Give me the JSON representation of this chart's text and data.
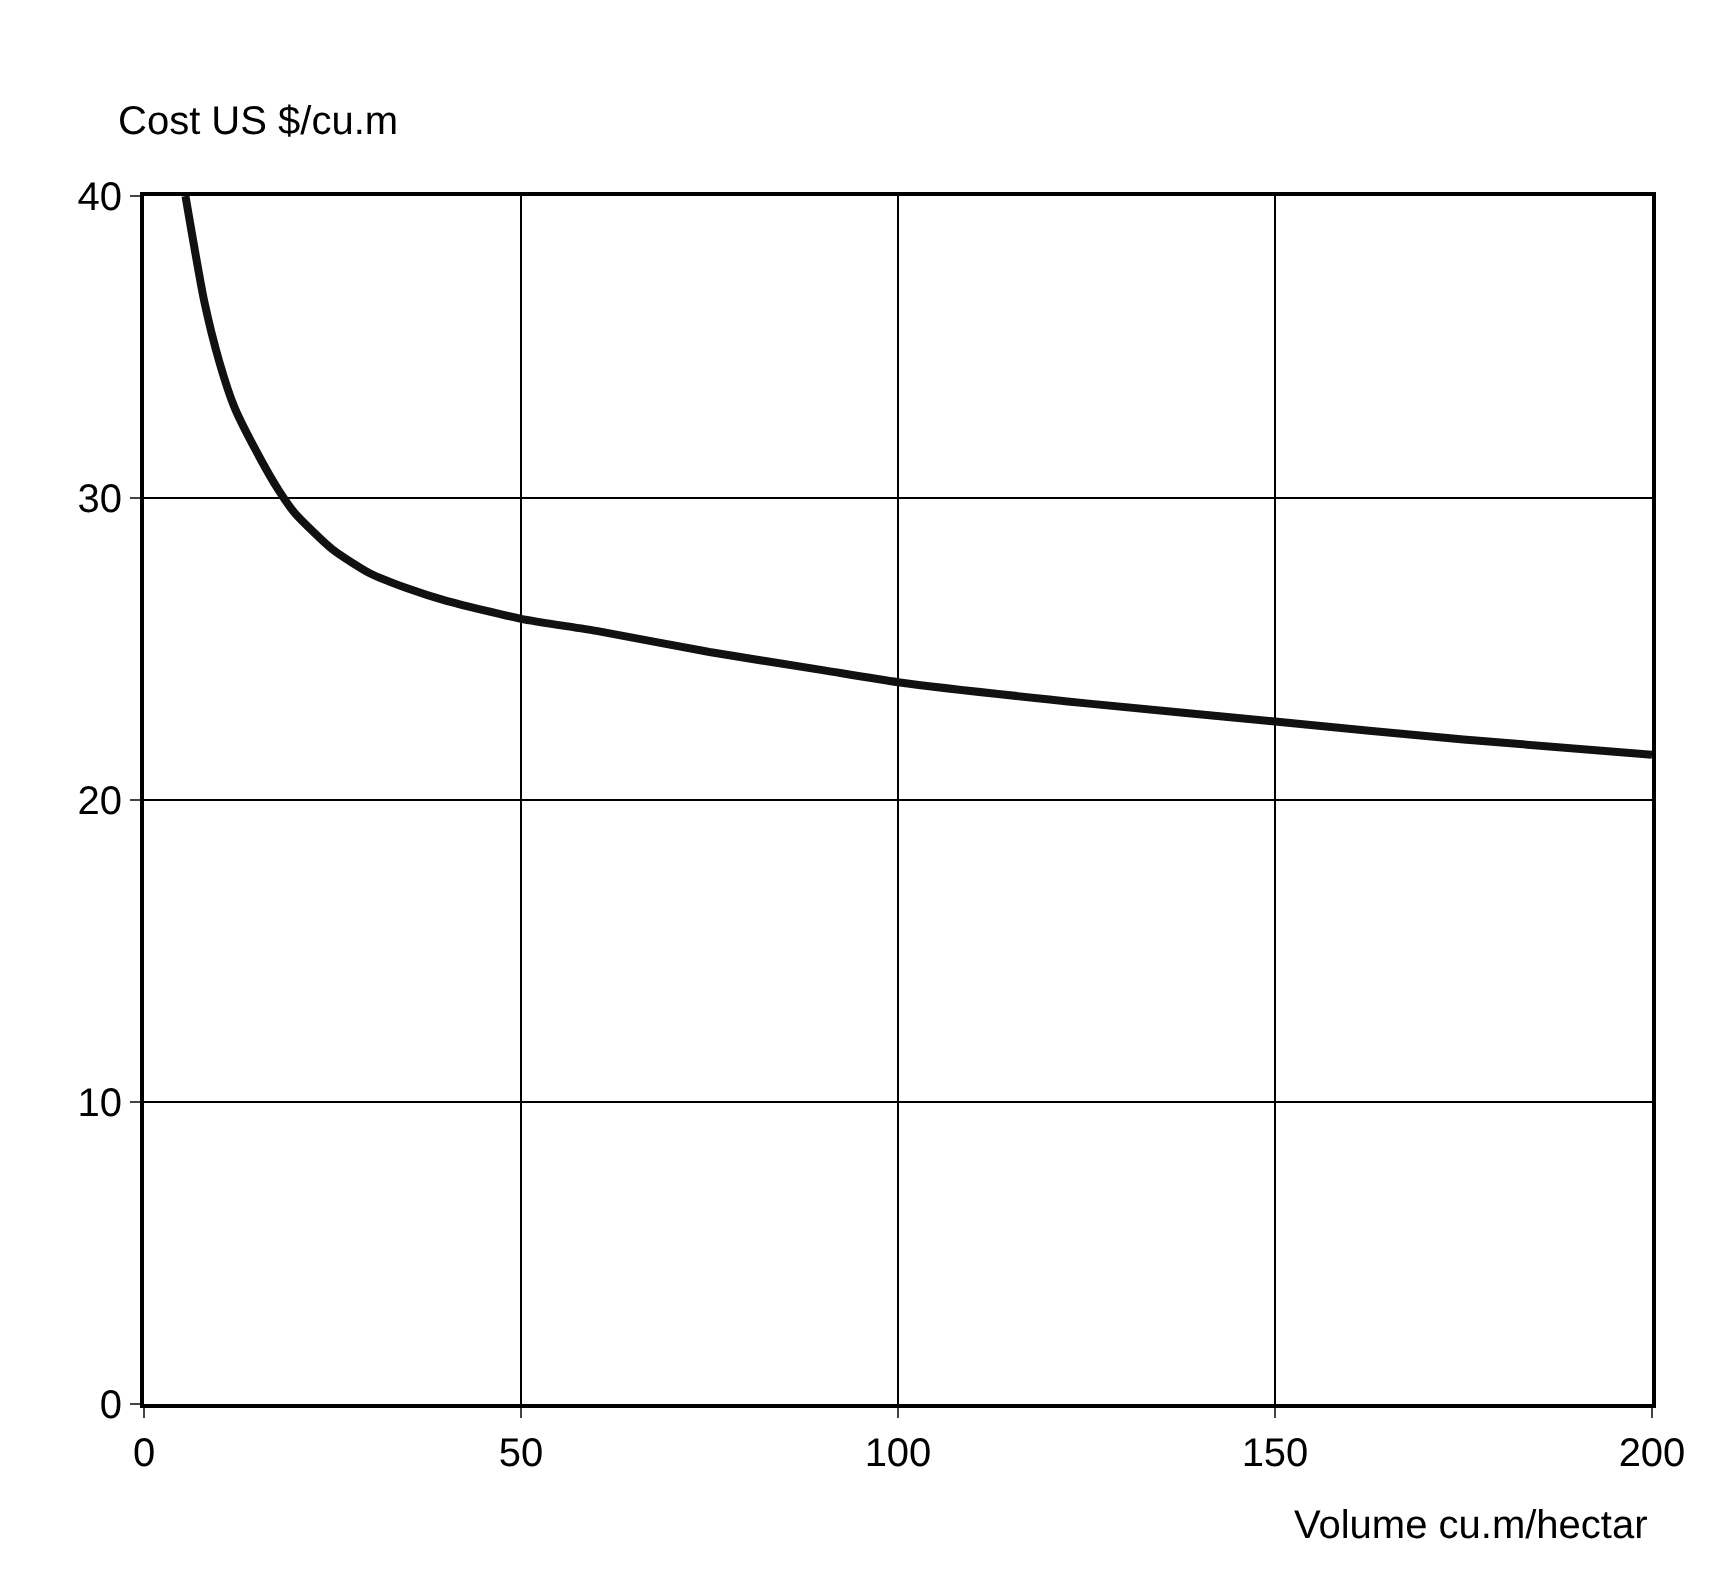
{
  "chart_data": {
    "type": "line",
    "xlabel": "Volume cu.m/hectar",
    "ylabel": "Cost US $/cu.m",
    "x": [
      5.5,
      8,
      10,
      12,
      15,
      18,
      20,
      25,
      30,
      35,
      40,
      50,
      60,
      75,
      90,
      100,
      125,
      150,
      175,
      200
    ],
    "series": [
      {
        "color": "#111111",
        "values": [
          40,
          36.5,
          34.5,
          33,
          31.5,
          30.2,
          29.5,
          28.3,
          27.5,
          27,
          26.6,
          26,
          25.6,
          24.9,
          24.3,
          23.9,
          23.2,
          22.6,
          22,
          21.5
        ]
      }
    ],
    "xlim": [
      0,
      200
    ],
    "xticks": [
      0,
      50,
      100,
      150,
      200
    ],
    "ylim": [
      0,
      40
    ],
    "yticks": [
      0,
      10,
      20,
      30,
      40
    ],
    "grid": true,
    "legend": false,
    "marker": "none",
    "line_style": "solid"
  }
}
